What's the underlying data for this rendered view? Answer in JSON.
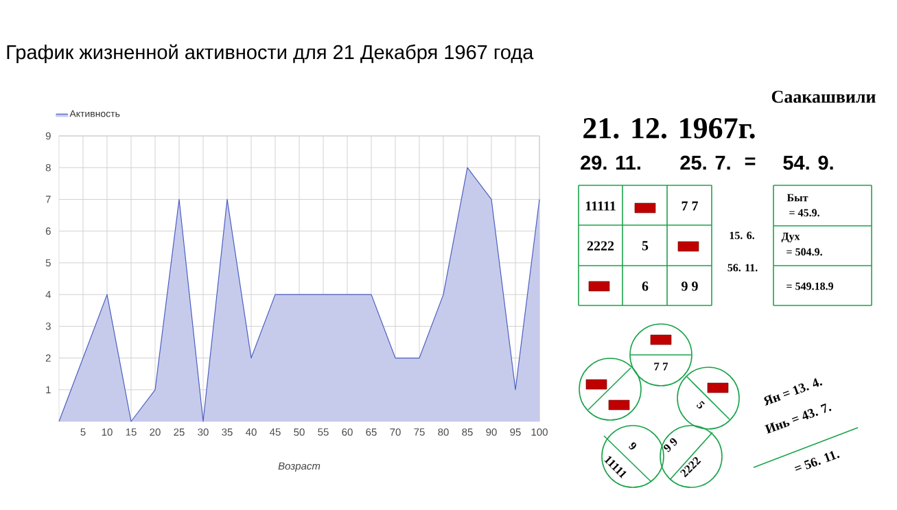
{
  "chart_data": [
    {
      "type": "area",
      "title": "График жизненной активности для 21 Декабря 1967 года",
      "xlabel": "Возраст",
      "x": [
        0,
        5,
        10,
        15,
        20,
        25,
        30,
        35,
        40,
        45,
        50,
        55,
        60,
        65,
        70,
        75,
        80,
        85,
        90,
        95,
        100
      ],
      "series": [
        {
          "name": "Активность",
          "color": "#4d5ec1",
          "values": [
            0,
            2,
            4,
            0,
            1,
            7,
            0,
            7,
            2,
            4,
            4,
            4,
            4,
            4,
            2,
            2,
            4,
            8,
            7,
            1,
            7
          ]
        }
      ],
      "xlim": [
        0,
        100
      ],
      "ylim": [
        0,
        9
      ],
      "xticks": [
        5,
        10,
        15,
        20,
        25,
        30,
        35,
        40,
        45,
        50,
        55,
        60,
        65,
        70,
        75,
        80,
        85,
        90,
        95,
        100
      ],
      "yticks": [
        1,
        2,
        3,
        4,
        5,
        6,
        7,
        8,
        9
      ],
      "grid": true,
      "legend": "top left"
    },
    {
      "type": "other",
      "annotations": [
        "Саакашвили",
        "21. 12. 1967г.",
        "29. 11.",
        "25. 7.",
        "=",
        "54. 9.",
        "11111",
        "7 7",
        "2222",
        "5",
        "6",
        "9 9",
        "15. 6.",
        "56. 11.",
        "Быт",
        "= 45.9.",
        "Дух",
        "= 504.9.",
        "= 549.18.9",
        "7 7",
        "5",
        "6",
        "11111",
        "9 9",
        "2222",
        "Ян = 13. 4.",
        "Инь = 43. 7.",
        "= 56. 11."
      ]
    }
  ]
}
